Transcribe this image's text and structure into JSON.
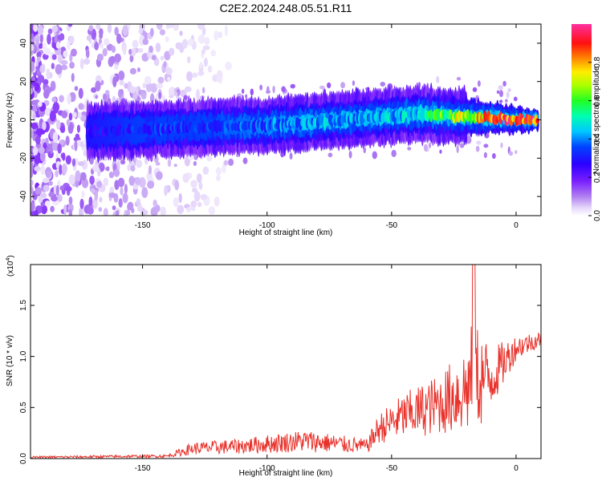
{
  "title": "C2E2.2024.248.05.51.R11",
  "chart_data": [
    {
      "type": "heatmap",
      "xlabel": "Height of straight line (km)",
      "ylabel": "Frequency (Hz)",
      "xlim": [
        -195,
        10
      ],
      "ylim": [
        -50,
        50
      ],
      "xticks": [
        -150,
        -100,
        -50,
        0
      ],
      "yticks": [
        -40,
        -20,
        0,
        20,
        40
      ],
      "colorbar": {
        "label": "Normalized spectral amplitude",
        "range": [
          0,
          1
        ],
        "ticks": [
          "0.0",
          "0.2",
          "0.4",
          "0.6",
          "0.8"
        ],
        "colors": [
          "#ffffff",
          "#d9c6f7",
          "#8a2be2",
          "#4b00ff",
          "#0000ff",
          "#00aaff",
          "#00ffff",
          "#00ff66",
          "#66ff00",
          "#ffff00",
          "#ff9900",
          "#ff0000",
          "#ff33cc"
        ]
      },
      "band": {
        "description_points": [
          {
            "x": -170,
            "y": -6,
            "amp": 0.3
          },
          {
            "x": -150,
            "y": -5,
            "amp": 0.35
          },
          {
            "x": -130,
            "y": -4,
            "amp": 0.35
          },
          {
            "x": -100,
            "y": -3,
            "amp": 0.4
          },
          {
            "x": -80,
            "y": -1,
            "amp": 0.45
          },
          {
            "x": -60,
            "y": 1,
            "amp": 0.45
          },
          {
            "x": -40,
            "y": 3,
            "amp": 0.5
          },
          {
            "x": -25,
            "y": 2,
            "amp": 0.7
          },
          {
            "x": -10,
            "y": 1,
            "amp": 0.9
          },
          {
            "x": 5,
            "y": 0,
            "amp": 0.95
          }
        ]
      }
    },
    {
      "type": "line",
      "xlabel": "Height of straight line (km)",
      "ylabel": "SNR (10 * v/v)",
      "yscale_label": "(x10",
      "yscale_exp": "4",
      "yscale_close": ")",
      "xlim": [
        -195,
        10
      ],
      "ylim": [
        0,
        1.9
      ],
      "xticks": [
        -150,
        -100,
        -50,
        0
      ],
      "yticks": [
        "0.0",
        "0.5",
        "1.0",
        "1.5"
      ],
      "line_color": "#e8312a",
      "envelope": [
        {
          "x": -195,
          "base": 0.01,
          "spread": 0.02
        },
        {
          "x": -140,
          "base": 0.02,
          "spread": 0.03
        },
        {
          "x": -130,
          "base": 0.08,
          "spread": 0.12
        },
        {
          "x": -110,
          "base": 0.1,
          "spread": 0.15
        },
        {
          "x": -85,
          "base": 0.14,
          "spread": 0.22
        },
        {
          "x": -60,
          "base": 0.1,
          "spread": 0.14
        },
        {
          "x": -55,
          "base": 0.25,
          "spread": 0.3
        },
        {
          "x": -45,
          "base": 0.35,
          "spread": 0.45
        },
        {
          "x": -30,
          "base": 0.45,
          "spread": 0.6
        },
        {
          "x": -20,
          "base": 0.55,
          "spread": 0.9
        },
        {
          "x": -17,
          "base": 0.6,
          "spread": 1.25
        },
        {
          "x": -10,
          "base": 0.7,
          "spread": 0.6
        },
        {
          "x": 0,
          "base": 1.05,
          "spread": 0.25
        },
        {
          "x": 10,
          "base": 1.15,
          "spread": 0.15
        }
      ]
    }
  ]
}
